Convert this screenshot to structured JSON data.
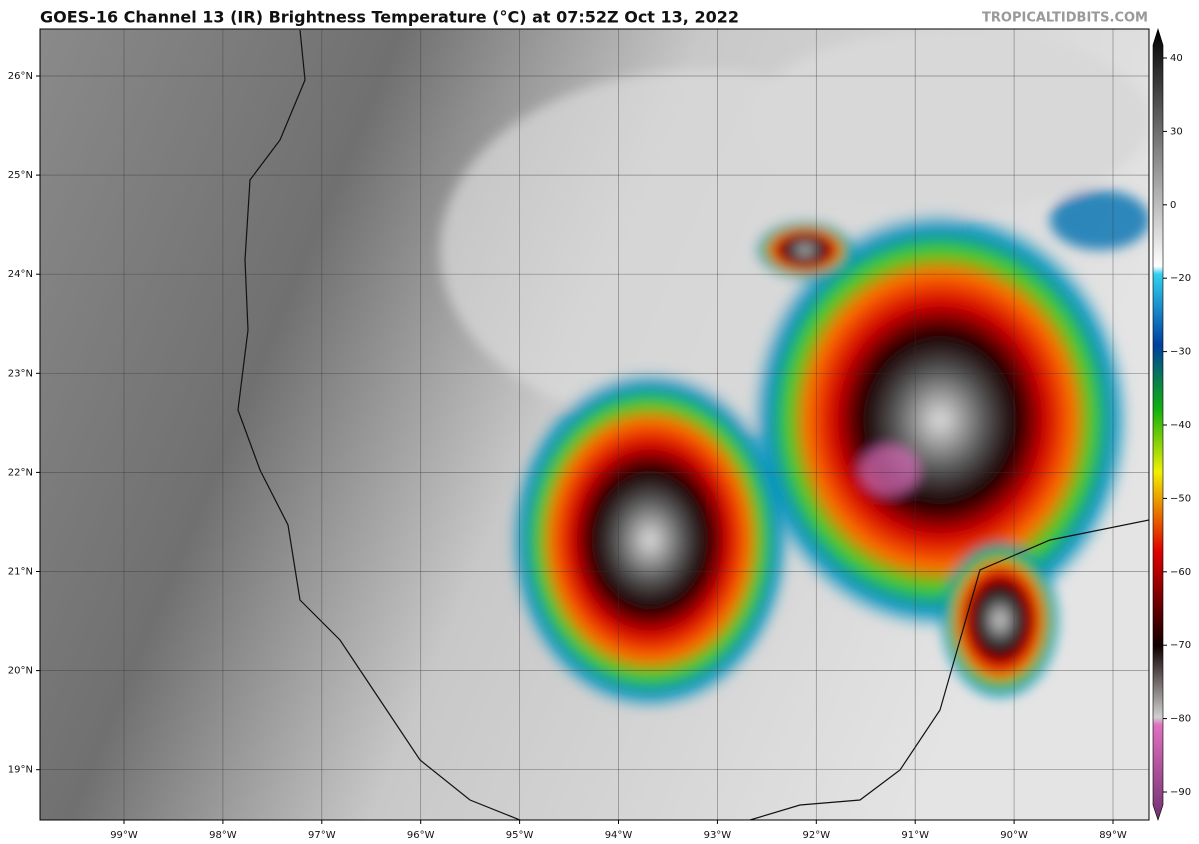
{
  "header": {
    "title": "GOES-16 Channel 13 (IR) Brightness Temperature (°C) at 07:52Z Oct 13, 2022",
    "credit": "TROPICALTIDBITS.COM"
  },
  "map": {
    "latitude_labels": [
      "26°N",
      "25°N",
      "24°N",
      "23°N",
      "22°N",
      "21°N",
      "20°N",
      "19°N"
    ],
    "longitude_labels": [
      "99°W",
      "98°W",
      "97°W",
      "96°W",
      "95°W",
      "94°W",
      "93°W",
      "92°W",
      "91°W",
      "90°W",
      "89°W"
    ]
  },
  "colorbar": {
    "tick_labels": [
      "40",
      "30",
      "0",
      "−20",
      "−30",
      "−40",
      "−50",
      "−60",
      "−70",
      "−80",
      "−90"
    ]
  }
}
